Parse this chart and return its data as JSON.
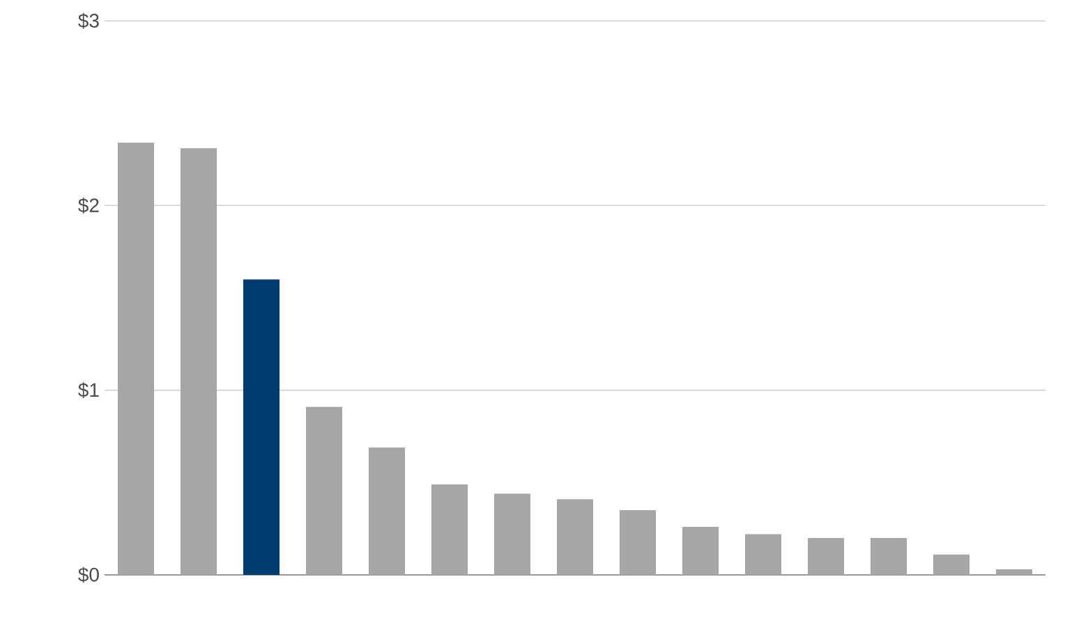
{
  "chart_data": {
    "type": "bar",
    "categories": [
      null,
      null,
      null,
      null,
      null,
      null,
      null,
      null,
      null,
      null,
      null,
      null,
      null,
      null,
      null
    ],
    "values": [
      2.34,
      2.31,
      1.6,
      0.91,
      0.69,
      0.49,
      0.44,
      0.41,
      0.35,
      0.26,
      0.22,
      0.2,
      0.2,
      0.11,
      0.03
    ],
    "colors": [
      "#a6a6a6",
      "#a6a6a6",
      "#003c71",
      "#a6a6a6",
      "#a6a6a6",
      "#a6a6a6",
      "#a6a6a6",
      "#a6a6a6",
      "#a6a6a6",
      "#a6a6a6",
      "#a6a6a6",
      "#a6a6a6",
      "#a6a6a6",
      "#a6a6a6",
      "#a6a6a6"
    ],
    "ylim": [
      0,
      3
    ],
    "yticks": [
      {
        "value": 0,
        "label": "$0"
      },
      {
        "value": 1,
        "label": "$1"
      },
      {
        "value": 2,
        "label": "$2"
      },
      {
        "value": 3,
        "label": "$3"
      }
    ],
    "grid": "y"
  }
}
